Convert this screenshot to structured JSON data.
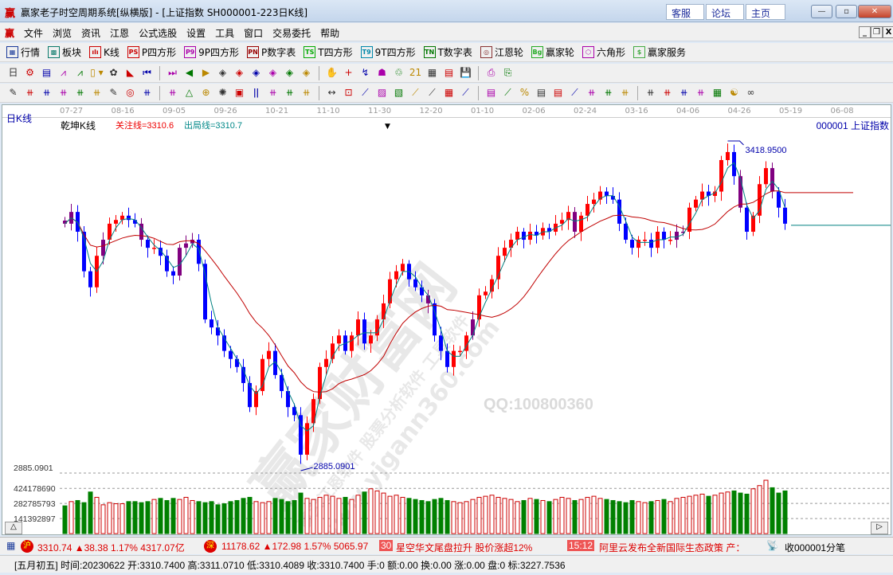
{
  "window": {
    "logo": "赢",
    "title": "赢家老子时空周期系统[纵横版] - [上证指数  SH000001-223日K线]",
    "links": [
      "客服",
      "论坛",
      "主页"
    ],
    "controls": [
      "—",
      "▫",
      "✕"
    ]
  },
  "menu": {
    "logo": "赢",
    "items": [
      "文件",
      "浏览",
      "资讯",
      "江恩",
      "公式选股",
      "设置",
      "工具",
      "窗口",
      "交易委托",
      "帮助"
    ],
    "mdi": [
      "_",
      "❐",
      "X"
    ]
  },
  "toolbar1": [
    {
      "label": "行情",
      "icon": "table-icon",
      "glyph": "▦",
      "color": "#1a3a9a"
    },
    {
      "label": "板块",
      "icon": "grid-icon",
      "glyph": "▩",
      "color": "#0a7a6a"
    },
    {
      "label": "K线",
      "icon": "candles-icon",
      "glyph": "ılı",
      "color": "#c00"
    },
    {
      "label": "P四方形",
      "icon": "ps-icon",
      "glyph": "PS",
      "color": "#c00"
    },
    {
      "label": "9P四方形",
      "icon": "p9-icon",
      "glyph": "P9",
      "color": "#a0a"
    },
    {
      "label": "P数字表",
      "icon": "pn-icon",
      "glyph": "PN",
      "color": "#900"
    },
    {
      "label": "T四方形",
      "icon": "ts-icon",
      "glyph": "TS",
      "color": "#0a0"
    },
    {
      "label": "9T四方形",
      "icon": "t9-icon",
      "glyph": "T9",
      "color": "#08a"
    },
    {
      "label": "T数字表",
      "icon": "tn-icon",
      "glyph": "TN",
      "color": "#070"
    },
    {
      "label": "江恩轮",
      "icon": "target-icon",
      "glyph": "◎",
      "color": "#833"
    },
    {
      "label": "赢家轮",
      "icon": "big-icon",
      "glyph": "Bg",
      "color": "#2a2"
    },
    {
      "label": "六角形",
      "icon": "hexagon-icon",
      "glyph": "⬡",
      "color": "#a0a"
    },
    {
      "label": "赢家服务",
      "icon": "dollar-icon",
      "glyph": "$",
      "color": "#4a4"
    }
  ],
  "toolbar2": [
    "日 ▾",
    "⚙",
    "▤",
    "⩘",
    "⩘",
    "▯ ▾",
    "✿",
    "◣",
    "⏮",
    "⏭",
    "◀",
    "▶",
    "◈",
    "◈",
    "◈",
    "◈",
    "◈",
    "◈",
    "✋",
    "+",
    "↯",
    "☗",
    "♲",
    "21",
    "▦",
    "▤",
    "💾",
    "⎙",
    "⎘"
  ],
  "toolbar3": [
    "✎",
    "⧺",
    "⧺",
    "⧺",
    "⧺",
    "⧺",
    "✎",
    "◎",
    "⧺",
    "⧺",
    "△",
    "⊕",
    "✺",
    "▣",
    "ǀǀ",
    "⧺",
    "⧺",
    "⧺",
    "↔",
    "⊡",
    "⟋",
    "▨",
    "▧",
    "⟋",
    "⟋",
    "▦",
    "⟋",
    "▤",
    "⟋",
    "%",
    "▤",
    "▤",
    "⟋",
    "⧺",
    "⧺",
    "⧺",
    "⧺",
    "⧺",
    "⧺",
    "⧺",
    "▦",
    "☯",
    "∞"
  ],
  "chart": {
    "period": "日K线",
    "indicator_name": "乾坤K线",
    "focus_line": "关注线=3310.6",
    "exit_line": "出局线=3310.7",
    "symbol": "000001  上证指数",
    "high_label": "3418.9500",
    "low_label": "2885.0901",
    "low_axis_label": "2885.0901",
    "dates": [
      "07-27",
      "08-16",
      "09-05",
      "09-26",
      "10-21",
      "11-10",
      "11-30",
      "12-20",
      "01-10",
      "02-06",
      "02-24",
      "03-16",
      "04-06",
      "04-26",
      "05-19",
      "06-08"
    ],
    "watermark": [
      "赢家财富网",
      "赢家江恩软件  股票分析软件 工具软件",
      "www.yjgann360.com",
      "QQ:100800360"
    ],
    "colors": {
      "up": "#ff0000",
      "down": "#0000ff",
      "neutral": "#800080",
      "ma_short": "#008080",
      "ma_long": "#c00000"
    }
  },
  "chart_data": {
    "type": "candlestick",
    "ylim": [
      2885.0901,
      3418.95
    ],
    "closes": [
      3285,
      3304,
      3272,
      3208,
      3182,
      3233,
      3259,
      3285,
      3291,
      3298,
      3291,
      3285,
      3259,
      3246,
      3246,
      3233,
      3208,
      3201,
      3246,
      3253,
      3259,
      3220,
      3130,
      3117,
      3104,
      3079,
      3066,
      3053,
      3027,
      2988,
      3014,
      3066,
      3079,
      3040,
      3014,
      2988,
      2975,
      2911,
      2962,
      3001,
      3053,
      3066,
      3091,
      3104,
      3079,
      3104,
      3130,
      3091,
      3104,
      3130,
      3156,
      3195,
      3208,
      3220,
      3195,
      3182,
      3169,
      3156,
      3104,
      3079,
      3053,
      3079,
      3079,
      3104,
      3130,
      3169,
      3175,
      3195,
      3233,
      3246,
      3259,
      3272,
      3259,
      3272,
      3266,
      3278,
      3272,
      3285,
      3291,
      3304,
      3272,
      3298,
      3317,
      3324,
      3337,
      3330,
      3324,
      3285,
      3259,
      3246,
      3259,
      3259,
      3246,
      3272,
      3259,
      3259,
      3272,
      3272,
      3311,
      3324,
      3337,
      3330,
      3337,
      3388,
      3401,
      3362,
      3311,
      3272,
      3298,
      3349,
      3375,
      3337,
      3311,
      3285
    ],
    "volume_axis": {
      "labels": [
        "424178690",
        "282785793",
        "141392897"
      ],
      "max": 560000000
    },
    "volumes": [
      260,
      300,
      310,
      290,
      390,
      340,
      270,
      290,
      280,
      280,
      300,
      300,
      290,
      300,
      320,
      330,
      310,
      330,
      320,
      340,
      310,
      300,
      290,
      300,
      270,
      280,
      300,
      310,
      330,
      340,
      300,
      290,
      300,
      330,
      320,
      300,
      310,
      380,
      330,
      320,
      340,
      360,
      350,
      330,
      340,
      320,
      360,
      390,
      420,
      400,
      380,
      350,
      360,
      340,
      330,
      320,
      310,
      300,
      320,
      330,
      310,
      300,
      290,
      300,
      320,
      340,
      350,
      360,
      340,
      330,
      320,
      300,
      310,
      330,
      320,
      310,
      300,
      320,
      340,
      330,
      310,
      320,
      340,
      350,
      330,
      320,
      310,
      300,
      290,
      310,
      300,
      290,
      300,
      310,
      320,
      300,
      330,
      340,
      350,
      360,
      370,
      350,
      360,
      380,
      390,
      400,
      380,
      370,
      420,
      450,
      500,
      430,
      380,
      400
    ]
  },
  "ticker": {
    "sh_badge": "沪",
    "sh": "3310.74 ▲38.38 1.17% 4317.07亿",
    "sz_badge": "深",
    "sz": "11178.62 ▲172.98 1.57% 5065.97",
    "news1_time": "30",
    "news1": "星空华文尾盘拉升 股价涨超12%",
    "news2_time": "15:12",
    "news2": "阿里云发布全新国际生态政策 产：",
    "receive": "收000001分笔"
  },
  "status": "[五月初五] 时间:20230622 开:3310.7400 高:3311.0710 低:3310.4089 收:3310.7400 手:0 额:0.00 换:0.00 涨:0.00 盘:0 标:3227.7536"
}
